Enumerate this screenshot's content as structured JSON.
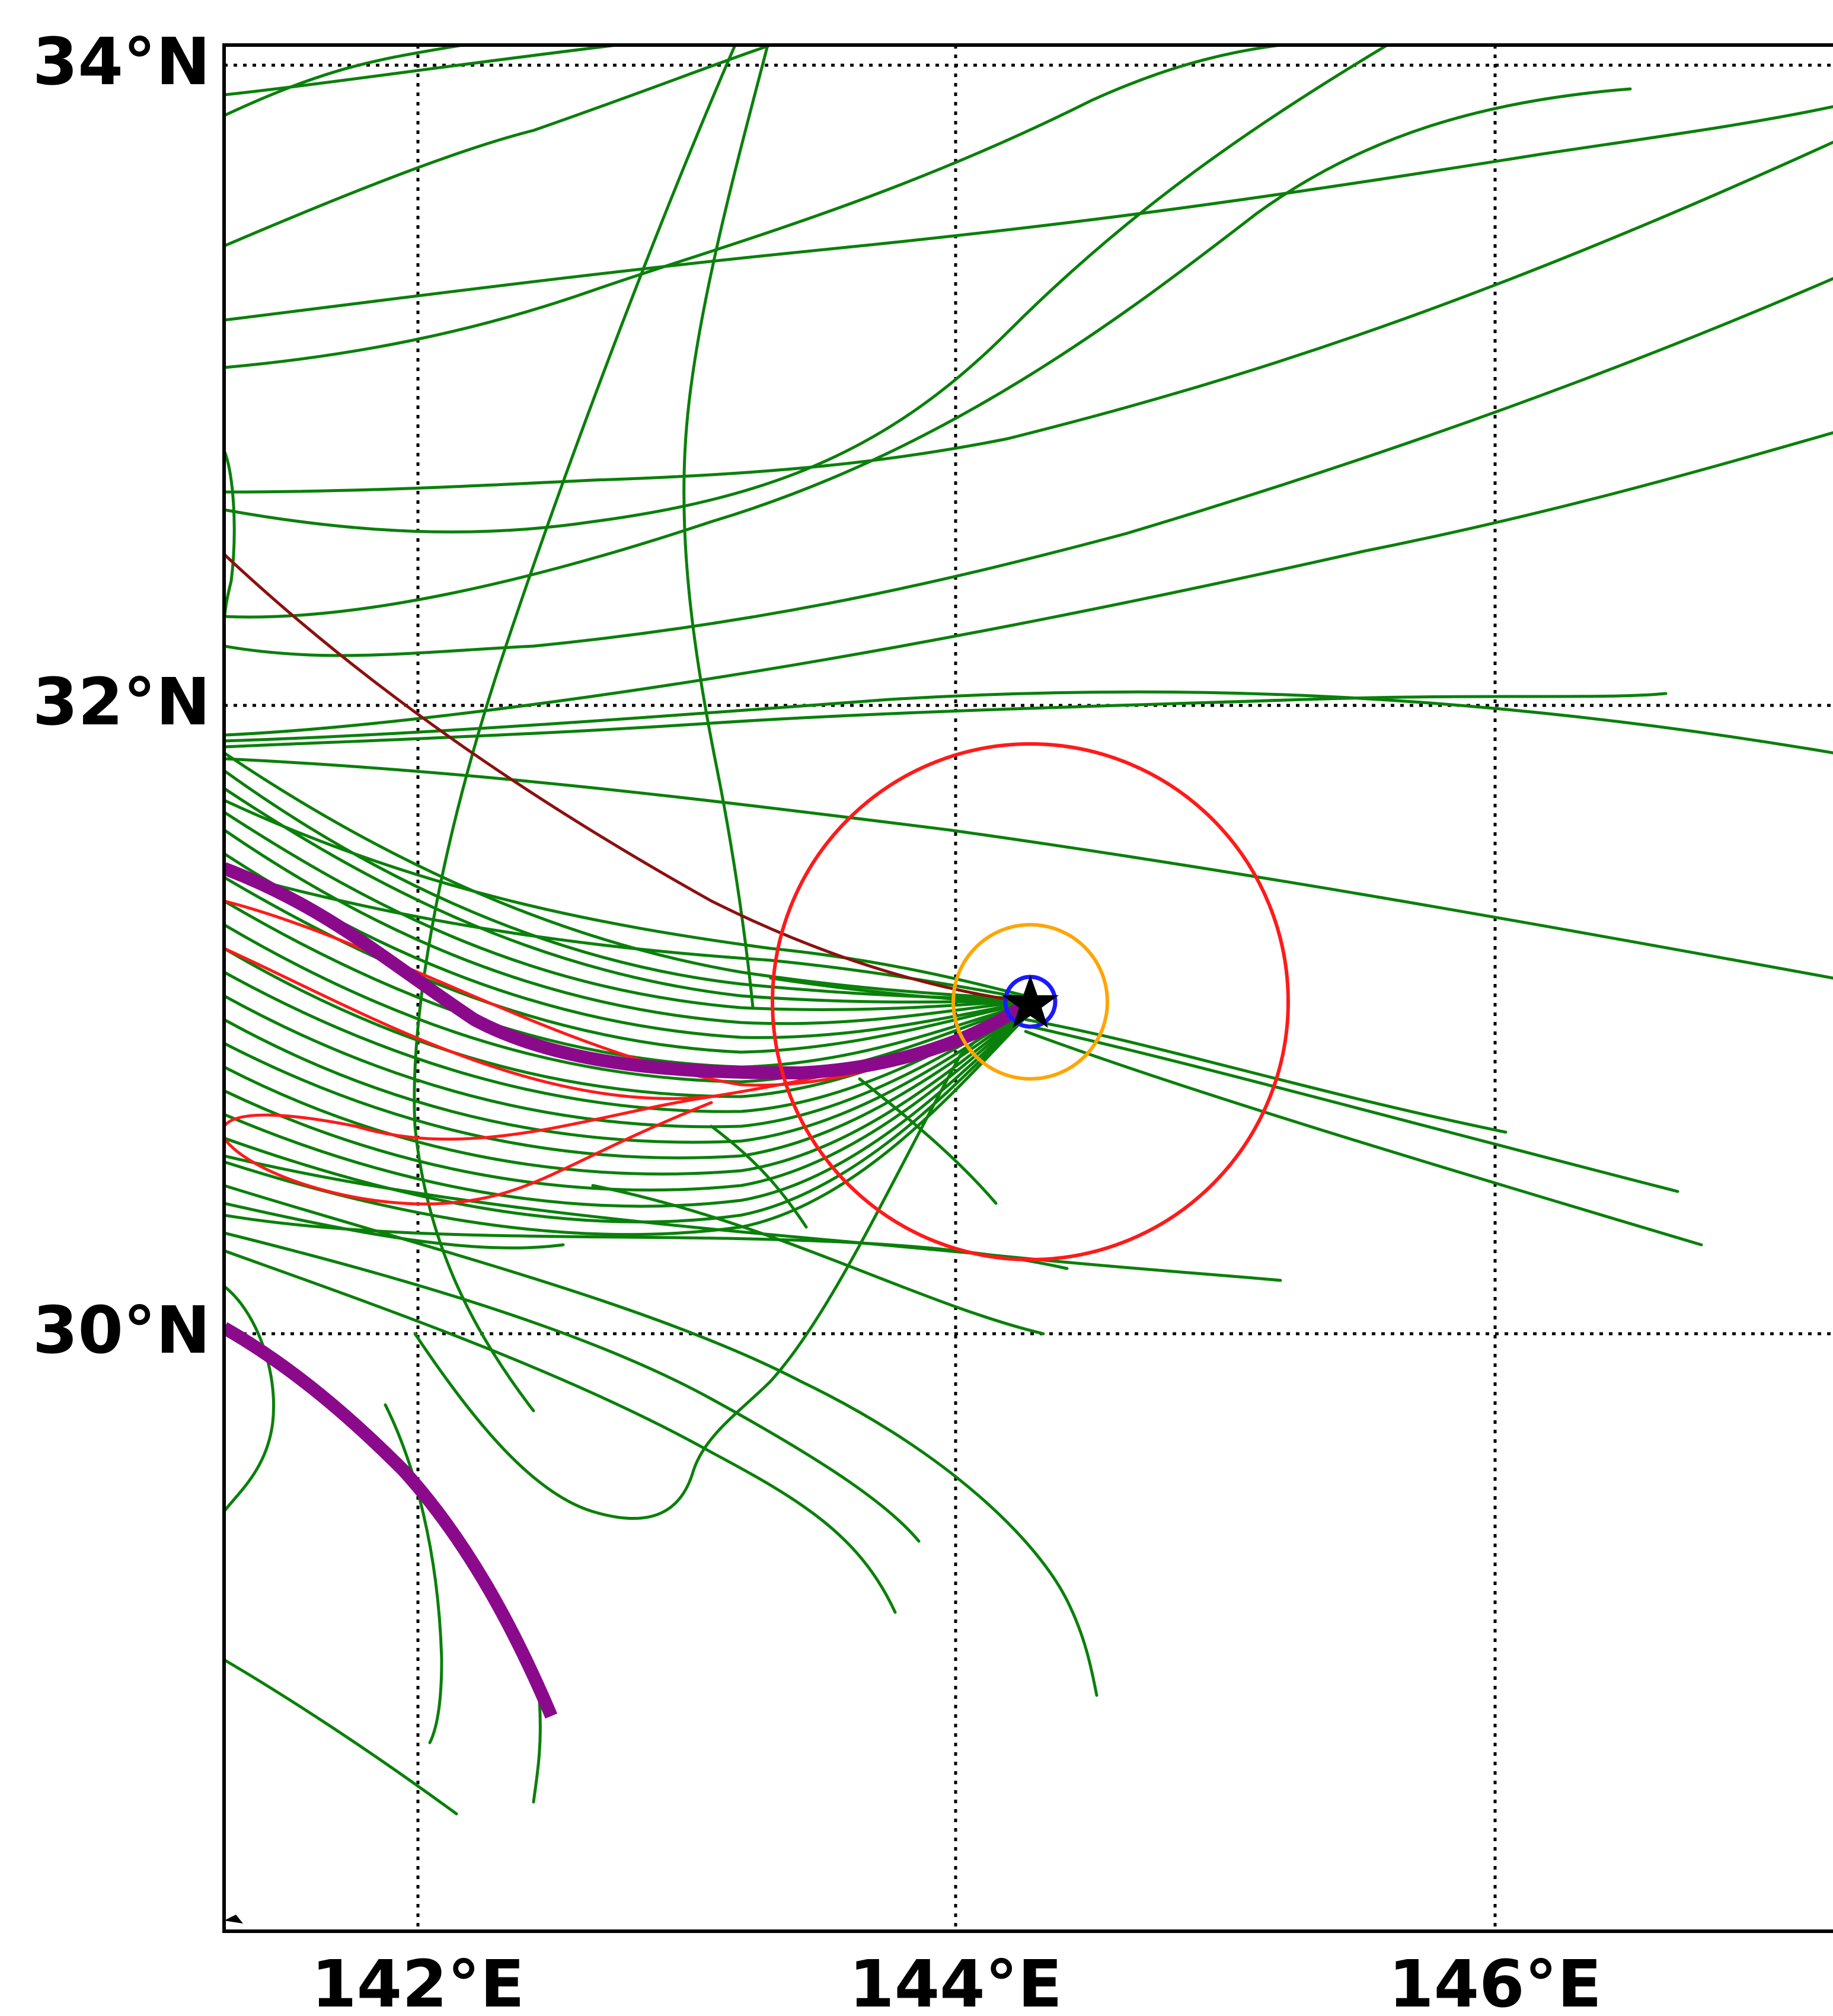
{
  "map": {
    "lat_labels": [
      "34°N",
      "32°N",
      "30°N"
    ],
    "lon_labels": [
      "142°E",
      "144°E",
      "146°E"
    ],
    "colors": {
      "ensemble_track": "#0a800a",
      "red_track": "#ff1a1a",
      "dark_red_track": "#8b1010",
      "best_track": "#8b0a8b",
      "radius_large": "#ff1a1a",
      "radius_medium": "#ffa500",
      "radius_small": "#1a1aff",
      "center_marker": "#000000"
    },
    "center_marker": {
      "lon": 144.27,
      "lat": 31.0,
      "icon": "star-marker-icon"
    }
  }
}
